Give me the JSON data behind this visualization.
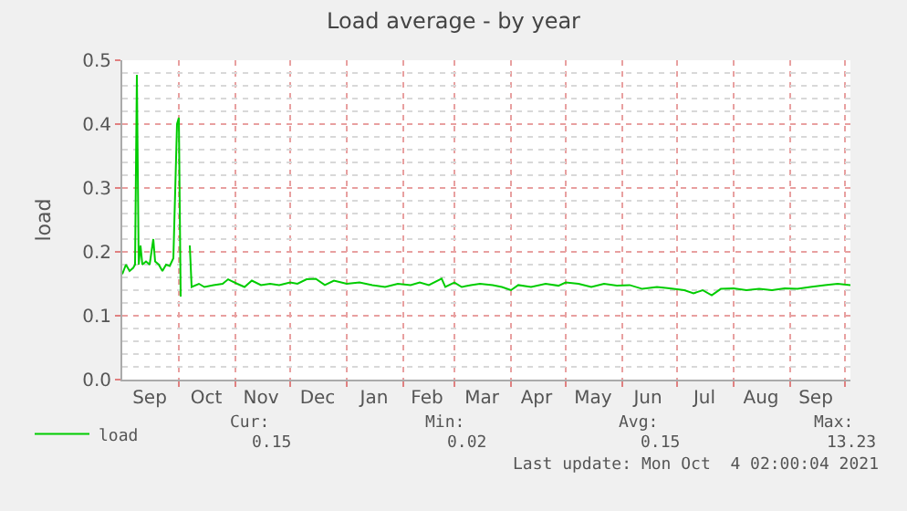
{
  "chart_data": {
    "type": "line",
    "title": "Load average - by year",
    "ylabel": "load",
    "x": [
      "2020-08-31",
      "2020-09-02",
      "2020-09-04",
      "2020-09-06",
      "2020-09-07",
      "2020-09-08",
      "2020-09-09",
      "2020-09-10",
      "2020-09-11",
      "2020-09-13",
      "2020-09-15",
      "2020-09-17",
      "2020-09-18",
      "2020-09-20",
      "2020-09-22",
      "2020-09-24",
      "2020-09-26",
      "2020-09-28",
      "2020-09-30",
      "2020-10-01",
      "2020-10-02",
      "2020-10-04",
      "2020-10-07",
      "2020-10-08",
      "2020-10-12",
      "2020-10-15",
      "2020-10-20",
      "2020-10-25",
      "2020-10-28",
      "2020-11-02",
      "2020-11-06",
      "2020-11-10",
      "2020-11-15",
      "2020-11-20",
      "2020-11-25",
      "2020-12-01",
      "2020-12-05",
      "2020-12-10",
      "2020-12-15",
      "2020-12-20",
      "2020-12-25",
      "2021-01-01",
      "2021-01-08",
      "2021-01-15",
      "2021-01-22",
      "2021-01-29",
      "2021-02-05",
      "2021-02-10",
      "2021-02-15",
      "2021-02-22",
      "2021-02-24",
      "2021-03-01",
      "2021-03-05",
      "2021-03-10",
      "2021-03-15",
      "2021-03-22",
      "2021-03-27",
      "2021-04-01",
      "2021-04-05",
      "2021-04-12",
      "2021-04-20",
      "2021-04-27",
      "2021-05-01",
      "2021-05-08",
      "2021-05-15",
      "2021-05-22",
      "2021-05-29",
      "2021-06-05",
      "2021-06-12",
      "2021-06-20",
      "2021-06-27",
      "2021-07-05",
      "2021-07-10",
      "2021-07-15",
      "2021-07-20",
      "2021-07-25",
      "2021-08-01",
      "2021-08-08",
      "2021-08-15",
      "2021-08-22",
      "2021-08-29",
      "2021-09-05",
      "2021-09-12",
      "2021-09-20",
      "2021-09-27",
      "2021-10-04"
    ],
    "series": [
      {
        "name": "load",
        "color": "#00cc00",
        "values": [
          0.165,
          0.18,
          0.17,
          0.175,
          0.18,
          0.477,
          0.18,
          0.21,
          0.18,
          0.185,
          0.18,
          0.22,
          0.185,
          0.18,
          0.17,
          0.18,
          0.178,
          0.19,
          0.4,
          0.41,
          0.13,
          null,
          0.21,
          0.145,
          0.15,
          0.145,
          0.148,
          0.15,
          0.157,
          0.15,
          0.145,
          0.155,
          0.148,
          0.15,
          0.148,
          0.152,
          0.15,
          0.157,
          0.158,
          0.148,
          0.155,
          0.15,
          0.152,
          0.148,
          0.145,
          0.15,
          0.148,
          0.152,
          0.148,
          0.158,
          0.145,
          0.152,
          0.145,
          0.148,
          0.15,
          0.148,
          0.145,
          0.14,
          0.148,
          0.145,
          0.15,
          0.147,
          0.152,
          0.15,
          0.145,
          0.15,
          0.147,
          0.148,
          0.142,
          0.145,
          0.143,
          0.14,
          0.135,
          0.14,
          0.132,
          0.142,
          0.143,
          0.14,
          0.142,
          0.14,
          0.143,
          0.142,
          0.145,
          0.148,
          0.15,
          0.148
        ]
      }
    ],
    "xlim": [
      "2020-08-31",
      "2021-10-04"
    ],
    "xticks": [
      {
        "value": "2020-09-15",
        "label": "Sep"
      },
      {
        "value": "2020-10-01",
        "label": null
      },
      {
        "value": "2020-10-16",
        "label": "Oct"
      },
      {
        "value": "2020-11-01",
        "label": null
      },
      {
        "value": "2020-11-15",
        "label": "Nov"
      },
      {
        "value": "2020-12-01",
        "label": null
      },
      {
        "value": "2020-12-16",
        "label": "Dec"
      },
      {
        "value": "2021-01-01",
        "label": null
      },
      {
        "value": "2021-01-16",
        "label": "Jan"
      },
      {
        "value": "2021-02-01",
        "label": null
      },
      {
        "value": "2021-02-14",
        "label": "Feb"
      },
      {
        "value": "2021-03-01",
        "label": null
      },
      {
        "value": "2021-03-16",
        "label": "Mar"
      },
      {
        "value": "2021-04-01",
        "label": null
      },
      {
        "value": "2021-04-15",
        "label": "Apr"
      },
      {
        "value": "2021-05-01",
        "label": null
      },
      {
        "value": "2021-05-16",
        "label": "May"
      },
      {
        "value": "2021-06-01",
        "label": null
      },
      {
        "value": "2021-06-15",
        "label": "Jun"
      },
      {
        "value": "2021-07-01",
        "label": null
      },
      {
        "value": "2021-07-16",
        "label": "Jul"
      },
      {
        "value": "2021-08-01",
        "label": null
      },
      {
        "value": "2021-08-16",
        "label": "Aug"
      },
      {
        "value": "2021-09-01",
        "label": null
      },
      {
        "value": "2021-09-15",
        "label": "Sep"
      },
      {
        "value": "2021-10-01",
        "label": null
      }
    ],
    "ylim": [
      0,
      0.5
    ],
    "yticks": [
      {
        "value": 0,
        "label": "0.0"
      },
      {
        "value": 0.02,
        "label": null
      },
      {
        "value": 0.04,
        "label": null
      },
      {
        "value": 0.06,
        "label": null
      },
      {
        "value": 0.08,
        "label": null
      },
      {
        "value": 0.1,
        "label": "0.1"
      },
      {
        "value": 0.12,
        "label": null
      },
      {
        "value": 0.14,
        "label": null
      },
      {
        "value": 0.16,
        "label": null
      },
      {
        "value": 0.18,
        "label": null
      },
      {
        "value": 0.2,
        "label": "0.2"
      },
      {
        "value": 0.22,
        "label": null
      },
      {
        "value": 0.24,
        "label": null
      },
      {
        "value": 0.26,
        "label": null
      },
      {
        "value": 0.28,
        "label": null
      },
      {
        "value": 0.3,
        "label": "0.3"
      },
      {
        "value": 0.32,
        "label": null
      },
      {
        "value": 0.34,
        "label": null
      },
      {
        "value": 0.36,
        "label": null
      },
      {
        "value": 0.38,
        "label": null
      },
      {
        "value": 0.4,
        "label": "0.4"
      },
      {
        "value": 0.42,
        "label": null
      },
      {
        "value": 0.44,
        "label": null
      },
      {
        "value": 0.46,
        "label": null
      },
      {
        "value": 0.48,
        "label": null
      },
      {
        "value": 0.5,
        "label": "0.5"
      }
    ],
    "grid": true,
    "legend": "bottom left",
    "marker": "none",
    "line_style": "solid",
    "annotations": [
      "Cur:",
      "Min:",
      "Avg:",
      "Max:",
      "0.15",
      "0.02",
      "0.15",
      "13.23",
      "Last update: Mon Oct  4 02:00:04 2021"
    ]
  }
}
